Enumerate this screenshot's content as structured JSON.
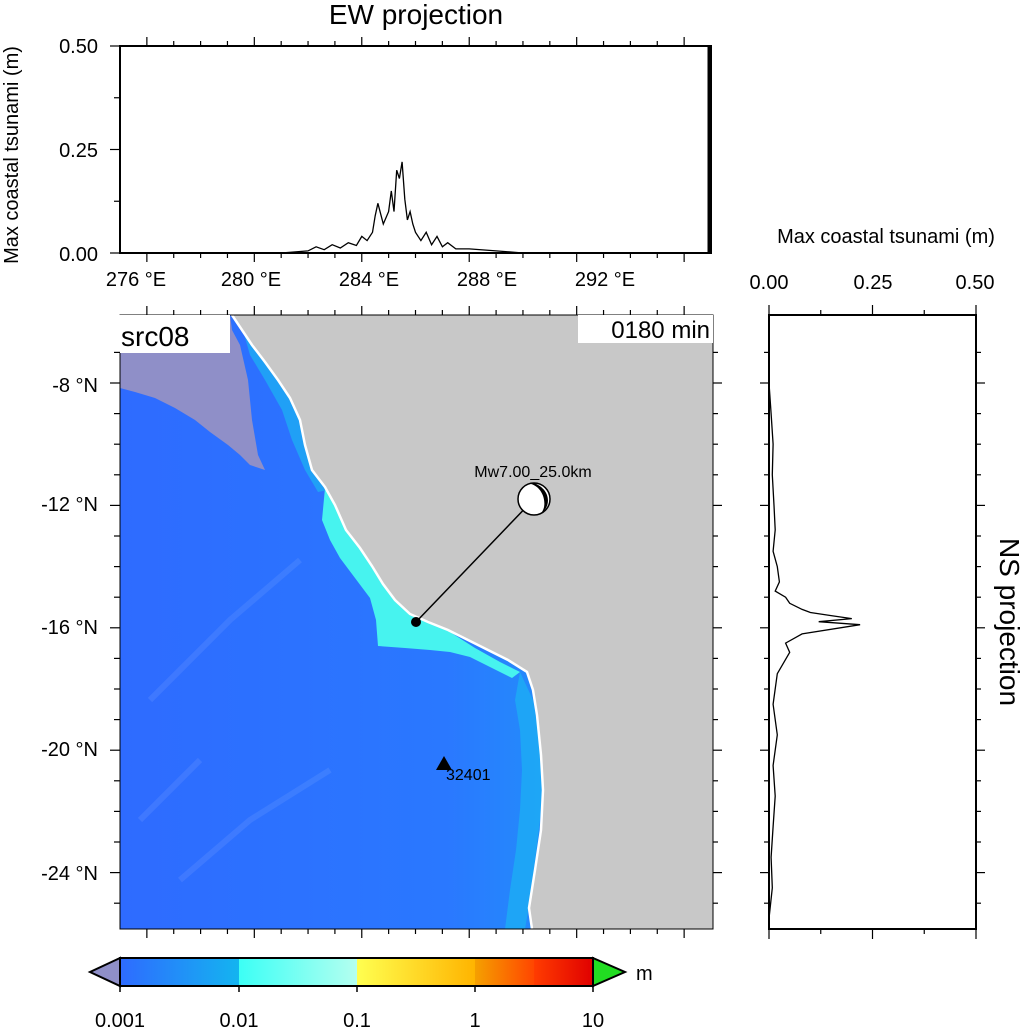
{
  "ew_panel": {
    "title": "EW projection",
    "ylabel": "Max coastal tsunami (m)",
    "y_ticks": [
      "0.00",
      "0.25",
      "0.50"
    ],
    "x_ticks": [
      "276 °E",
      "280 °E",
      "284 °E",
      "288 °E",
      "292 °E"
    ]
  },
  "ns_panel": {
    "title": "NS projection",
    "xlabel": "Max coastal tsunami (m)",
    "x_ticks": [
      "0.00",
      "0.25",
      "0.50"
    ]
  },
  "map": {
    "source_label": "src08",
    "time_label": "0180 min",
    "lat_ticks": [
      "-8 °N",
      "-12 °N",
      "-16 °N",
      "-20 °N",
      "-24 °N"
    ],
    "earthquake_label": "Mw7.00_25.0km",
    "station_label": "32401",
    "colors": {
      "ocean_low": "#2E6BFF",
      "ocean_mid": "#1EA8F5",
      "ocean_high": "#47F3EF",
      "land": "#C8C8C8",
      "dry": "#8F8FC8"
    }
  },
  "colorbar": {
    "unit": "m",
    "tick_labels": [
      "0.001",
      "0.01",
      "0.1",
      "1",
      "10"
    ],
    "colors": [
      "#2E6BFF",
      "#14B4F0",
      "#3CFFF5",
      "#A0FFF0",
      "#FFFF50",
      "#F5A000",
      "#FF5A00",
      "#F00000",
      "#8F8FC8",
      "#22DD22"
    ]
  },
  "chart_data": [
    {
      "type": "line",
      "title": "EW projection",
      "xlabel": "",
      "ylabel": "Max coastal tsunami (m)",
      "xlim": [
        275,
        297
      ],
      "ylim": [
        0,
        0.5
      ],
      "x": [
        281.0,
        282.0,
        282.3,
        282.6,
        282.9,
        283.2,
        283.5,
        283.8,
        284.0,
        284.2,
        284.4,
        284.5,
        284.6,
        284.8,
        285.0,
        285.1,
        285.2,
        285.3,
        285.4,
        285.5,
        285.6,
        285.7,
        285.8,
        285.9,
        286.0,
        286.2,
        286.4,
        286.6,
        286.8,
        287.0,
        287.2,
        287.5,
        288.0,
        289.0,
        290.0
      ],
      "y": [
        0.0,
        0.005,
        0.015,
        0.008,
        0.02,
        0.012,
        0.025,
        0.018,
        0.04,
        0.03,
        0.05,
        0.09,
        0.12,
        0.07,
        0.1,
        0.15,
        0.1,
        0.2,
        0.18,
        0.22,
        0.13,
        0.08,
        0.1,
        0.07,
        0.05,
        0.03,
        0.05,
        0.02,
        0.04,
        0.015,
        0.025,
        0.01,
        0.01,
        0.005,
        0.0
      ]
    },
    {
      "type": "line",
      "title": "NS projection",
      "xlabel": "Max coastal tsunami (m)",
      "ylabel": "",
      "xlim": [
        0,
        0.5
      ],
      "ylim": [
        -26,
        -6
      ],
      "x": [
        0.0,
        0.005,
        0.01,
        0.008,
        0.012,
        0.015,
        0.01,
        0.02,
        0.025,
        0.015,
        0.04,
        0.05,
        0.08,
        0.1,
        0.15,
        0.2,
        0.12,
        0.22,
        0.08,
        0.04,
        0.05,
        0.02,
        0.01,
        0.02,
        0.01,
        0.015,
        0.01,
        0.005,
        0.008,
        0.0
      ],
      "y": [
        -8.0,
        -9.0,
        -10.0,
        -11.0,
        -12.0,
        -12.8,
        -13.5,
        -14.0,
        -14.5,
        -14.8,
        -15.0,
        -15.2,
        -15.4,
        -15.5,
        -15.6,
        -15.7,
        -15.8,
        -15.9,
        -16.2,
        -16.5,
        -16.8,
        -17.5,
        -18.5,
        -19.5,
        -20.5,
        -21.5,
        -22.5,
        -23.5,
        -24.5,
        -25.5
      ]
    }
  ]
}
